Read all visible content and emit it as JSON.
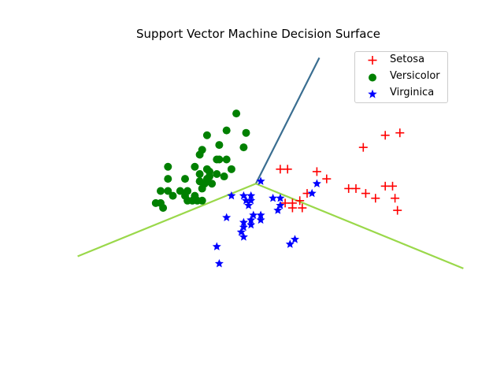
{
  "chart_data": {
    "type": "scatter",
    "title": "Support Vector Machine Decision Surface",
    "xlabel": "",
    "ylabel": "",
    "axes_visible": false,
    "grid": false,
    "legend_position": "top-right",
    "xlim": [
      -4,
      4
    ],
    "ylim": [
      -3,
      3
    ],
    "decision_boundaries": [
      {
        "from": [
          -0.05,
          0.15
        ],
        "to": [
          1.25,
          2.75
        ],
        "color": "#3a6e91"
      },
      {
        "from": [
          -0.05,
          0.15
        ],
        "to": [
          4.2,
          -1.6
        ],
        "color": "#9ad84a"
      },
      {
        "from": [
          -0.05,
          0.15
        ],
        "to": [
          -3.7,
          -1.35
        ],
        "color": "#9ad84a"
      }
    ],
    "series": [
      {
        "name": "Setosa",
        "marker": "plus",
        "color": "#ff0000",
        "points": [
          [
            0.45,
            0.45
          ],
          [
            0.6,
            0.45
          ],
          [
            1.2,
            0.4
          ],
          [
            1.4,
            0.25
          ],
          [
            1.0,
            -0.05
          ],
          [
            0.55,
            -0.25
          ],
          [
            0.7,
            -0.25
          ],
          [
            0.85,
            -0.2
          ],
          [
            0.7,
            -0.35
          ],
          [
            0.9,
            -0.35
          ],
          [
            1.85,
            0.05
          ],
          [
            2.0,
            0.05
          ],
          [
            2.2,
            -0.05
          ],
          [
            2.4,
            -0.15
          ],
          [
            2.6,
            0.1
          ],
          [
            2.75,
            0.1
          ],
          [
            2.8,
            -0.15
          ],
          [
            2.85,
            -0.4
          ],
          [
            2.6,
            1.15
          ],
          [
            2.9,
            1.2
          ],
          [
            2.15,
            0.9
          ]
        ]
      },
      {
        "name": "Versicolor",
        "marker": "circle",
        "color": "#008000",
        "points": [
          [
            -0.45,
            1.6
          ],
          [
            -0.65,
            1.25
          ],
          [
            -0.25,
            1.2
          ],
          [
            -1.05,
            1.15
          ],
          [
            -0.8,
            0.95
          ],
          [
            -0.3,
            0.9
          ],
          [
            -1.15,
            0.85
          ],
          [
            -1.2,
            0.75
          ],
          [
            -0.85,
            0.65
          ],
          [
            -0.8,
            0.65
          ],
          [
            -0.65,
            0.65
          ],
          [
            -1.85,
            0.5
          ],
          [
            -1.3,
            0.5
          ],
          [
            -1.05,
            0.45
          ],
          [
            -0.55,
            0.45
          ],
          [
            -1.0,
            0.4
          ],
          [
            -1.2,
            0.35
          ],
          [
            -1.0,
            0.3
          ],
          [
            -0.85,
            0.35
          ],
          [
            -0.7,
            0.3
          ],
          [
            -1.85,
            0.25
          ],
          [
            -1.5,
            0.25
          ],
          [
            -1.05,
            0.25
          ],
          [
            -1.2,
            0.2
          ],
          [
            -1.1,
            0.15
          ],
          [
            -0.95,
            0.15
          ],
          [
            -1.15,
            0.05
          ],
          [
            -2.0,
            0.0
          ],
          [
            -1.85,
            0.0
          ],
          [
            -1.6,
            0.0
          ],
          [
            -1.45,
            0.0
          ],
          [
            -1.75,
            -0.1
          ],
          [
            -1.5,
            -0.1
          ],
          [
            -1.3,
            -0.1
          ],
          [
            -1.45,
            -0.2
          ],
          [
            -1.35,
            -0.2
          ],
          [
            -1.25,
            -0.2
          ],
          [
            -1.15,
            -0.2
          ],
          [
            -2.1,
            -0.25
          ],
          [
            -2.0,
            -0.25
          ],
          [
            -1.95,
            -0.35
          ]
        ]
      },
      {
        "name": "Virginica",
        "marker": "star",
        "color": "#0000ff",
        "points": [
          [
            0.05,
            0.2
          ],
          [
            1.2,
            0.15
          ],
          [
            1.1,
            -0.05
          ],
          [
            -0.55,
            -0.1
          ],
          [
            -0.3,
            -0.1
          ],
          [
            -0.15,
            -0.1
          ],
          [
            -0.25,
            -0.2
          ],
          [
            -0.15,
            -0.2
          ],
          [
            0.3,
            -0.15
          ],
          [
            0.45,
            -0.15
          ],
          [
            -0.2,
            -0.3
          ],
          [
            0.45,
            -0.3
          ],
          [
            0.4,
            -0.4
          ],
          [
            -0.1,
            -0.5
          ],
          [
            0.05,
            -0.5
          ],
          [
            -0.15,
            -0.6
          ],
          [
            0.05,
            -0.6
          ],
          [
            -0.65,
            -0.55
          ],
          [
            -0.3,
            -0.65
          ],
          [
            -0.15,
            -0.7
          ],
          [
            -0.3,
            -0.75
          ],
          [
            -0.35,
            -0.85
          ],
          [
            -0.3,
            -0.95
          ],
          [
            0.75,
            -1.0
          ],
          [
            0.65,
            -1.1
          ],
          [
            -0.85,
            -1.15
          ],
          [
            -0.8,
            -1.5
          ]
        ]
      }
    ]
  }
}
